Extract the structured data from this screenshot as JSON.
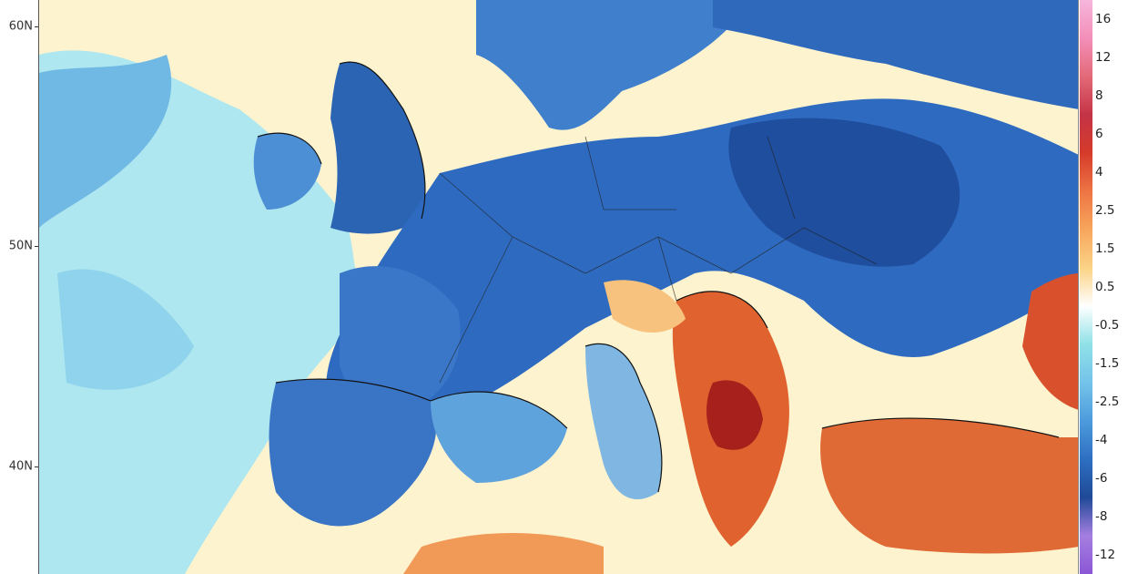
{
  "map": {
    "latitude_labels": [
      "60N",
      "50N",
      "40N"
    ],
    "colors": {
      "sea_neutral": "#fdf3cf",
      "cold_light": "#9fe3ee",
      "cold_mid": "#5fa8e0",
      "cold_strong": "#2f6fc4",
      "cold_deep": "#1c4f9c",
      "warm_light": "#fbd79a",
      "warm_mid": "#f29a55",
      "warm_strong": "#d84a2a",
      "warm_deep": "#a8201c",
      "border": "#111111"
    }
  },
  "legend": {
    "labels": [
      "16",
      "12",
      "8",
      "6",
      "4",
      "2.5",
      "1.5",
      "0.5",
      "-0.5",
      "-1.5",
      "-2.5",
      "-4",
      "-6",
      "-8",
      "-12"
    ],
    "colors": [
      "#f6b6dc",
      "#f38fb9",
      "#e36a78",
      "#c43346",
      "#d53b2a",
      "#ee7444",
      "#f7a65c",
      "#fbd386",
      "#ffffff",
      "#8fe1e7",
      "#74c3ea",
      "#4d9bdc",
      "#2e6fc2",
      "#1f4a97",
      "#a57ee0",
      "#8b57d6"
    ]
  }
}
